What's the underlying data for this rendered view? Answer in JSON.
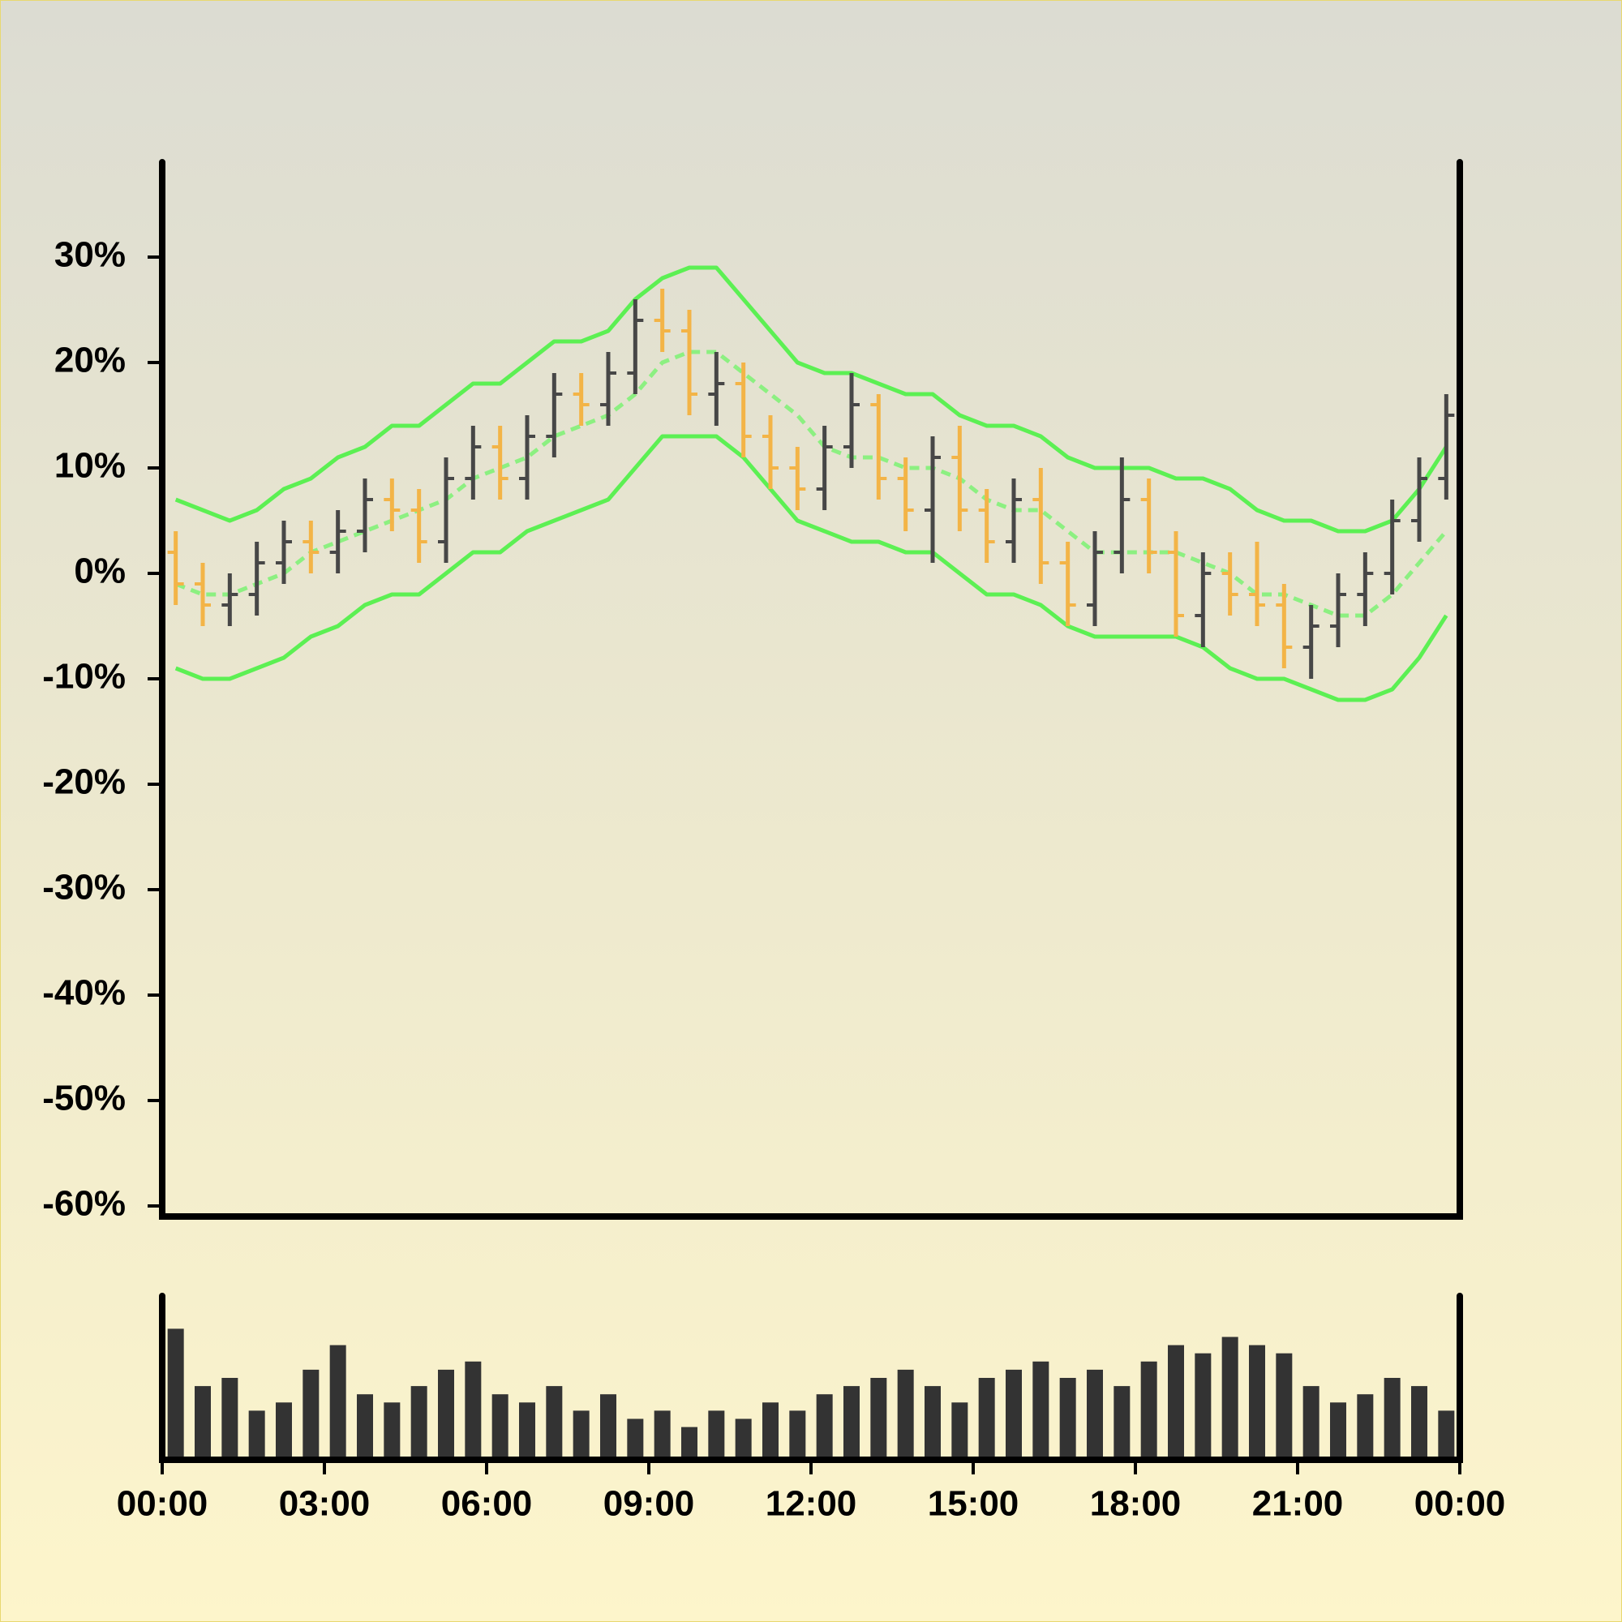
{
  "chart_data": {
    "type": "ohlc",
    "x": [
      0.25,
      0.75,
      1.25,
      1.75,
      2.25,
      2.75,
      3.25,
      3.75,
      4.25,
      4.75,
      5.25,
      5.75,
      6.25,
      6.75,
      7.25,
      7.75,
      8.25,
      8.75,
      9.25,
      9.75,
      10.25,
      10.75,
      11.25,
      11.75,
      12.25,
      12.75,
      13.25,
      13.75,
      14.25,
      14.75,
      15.25,
      15.75,
      16.25,
      16.75,
      17.25,
      17.75,
      18.25,
      18.75,
      19.25,
      19.75,
      20.25,
      20.75,
      21.25,
      21.75,
      22.25,
      22.75,
      23.25,
      23.75
    ],
    "open": [
      2,
      -1,
      -3,
      -2,
      1,
      3,
      2,
      4,
      7,
      6,
      3,
      9,
      12,
      9,
      13,
      17,
      16,
      19,
      24,
      23,
      17,
      18,
      13,
      10,
      8,
      12,
      16,
      9,
      6,
      11,
      6,
      3,
      7,
      1,
      -3,
      2,
      7,
      2,
      -4,
      0,
      -2,
      -3,
      -7,
      -5,
      -2,
      0,
      5,
      9
    ],
    "high": [
      4,
      1,
      0,
      3,
      5,
      5,
      6,
      9,
      9,
      8,
      11,
      14,
      14,
      15,
      19,
      19,
      21,
      26,
      27,
      25,
      21,
      20,
      15,
      12,
      14,
      19,
      17,
      11,
      13,
      14,
      8,
      9,
      10,
      3,
      4,
      11,
      9,
      4,
      2,
      2,
      3,
      -1,
      -3,
      0,
      2,
      7,
      11,
      17
    ],
    "low": [
      -3,
      -5,
      -5,
      -4,
      -1,
      0,
      0,
      2,
      4,
      1,
      1,
      7,
      7,
      7,
      11,
      14,
      14,
      17,
      21,
      15,
      14,
      11,
      8,
      6,
      6,
      10,
      7,
      4,
      1,
      4,
      1,
      1,
      -1,
      -5,
      -5,
      0,
      0,
      -6,
      -7,
      -4,
      -5,
      -9,
      -10,
      -7,
      -5,
      -2,
      3,
      7
    ],
    "close": [
      -1,
      -3,
      -2,
      1,
      3,
      2,
      4,
      7,
      6,
      3,
      9,
      12,
      9,
      13,
      17,
      16,
      19,
      24,
      23,
      17,
      18,
      13,
      10,
      8,
      12,
      16,
      9,
      6,
      11,
      6,
      3,
      7,
      1,
      -3,
      2,
      7,
      2,
      -4,
      0,
      -2,
      -3,
      -7,
      -5,
      -2,
      0,
      5,
      9,
      15
    ],
    "up_color": "#474747",
    "down_color": "#f3b447",
    "xlim": [
      0,
      24
    ],
    "xticks": [
      {
        "value": 0,
        "label": "00:00"
      },
      {
        "value": 3,
        "label": "03:00"
      },
      {
        "value": 6,
        "label": "06:00"
      },
      {
        "value": 9,
        "label": "09:00"
      },
      {
        "value": 12,
        "label": "12:00"
      },
      {
        "value": 15,
        "label": "15:00"
      },
      {
        "value": 18,
        "label": "18:00"
      },
      {
        "value": 21,
        "label": "21:00"
      },
      {
        "value": 24,
        "label": "00:00"
      }
    ],
    "ylim": [
      -61,
      39
    ],
    "yticks": [
      {
        "value": 30,
        "label": "30%"
      },
      {
        "value": 20,
        "label": "20%"
      },
      {
        "value": 10,
        "label": "10%"
      },
      {
        "value": 0,
        "label": "0%"
      },
      {
        "value": -10,
        "label": "-10%"
      },
      {
        "value": -20,
        "label": "-20%"
      },
      {
        "value": -30,
        "label": "-30%"
      },
      {
        "value": -40,
        "label": "-40%"
      },
      {
        "value": -50,
        "label": "-50%"
      },
      {
        "value": -60,
        "label": "-60%"
      }
    ],
    "bands": [
      {
        "color": "#5cf053",
        "dashed": false,
        "values": [
          7,
          6,
          5,
          6,
          8,
          9,
          11,
          12,
          14,
          14,
          16,
          18,
          18,
          20,
          22,
          22,
          23,
          26,
          28,
          29,
          29,
          26,
          23,
          20,
          19,
          19,
          18,
          17,
          17,
          15,
          14,
          14,
          13,
          11,
          10,
          10,
          10,
          9,
          9,
          8,
          6,
          5,
          5,
          4,
          4,
          5,
          8,
          12
        ]
      },
      {
        "color": "#8cf081",
        "dashed": true,
        "values": [
          -1,
          -2,
          -2,
          -1,
          0,
          2,
          3,
          4,
          5,
          6,
          7,
          9,
          10,
          11,
          13,
          14,
          15,
          17,
          20,
          21,
          21,
          19,
          17,
          15,
          12,
          11,
          11,
          10,
          10,
          9,
          7,
          6,
          6,
          4,
          2,
          2,
          2,
          2,
          1,
          0,
          -2,
          -2,
          -3,
          -4,
          -4,
          -2,
          1,
          4
        ]
      },
      {
        "color": "#5cf053",
        "dashed": false,
        "values": [
          -9,
          -10,
          -10,
          -9,
          -8,
          -6,
          -5,
          -3,
          -2,
          -2,
          0,
          2,
          2,
          4,
          5,
          6,
          7,
          10,
          13,
          13,
          13,
          11,
          8,
          5,
          4,
          3,
          3,
          2,
          2,
          0,
          -2,
          -2,
          -3,
          -5,
          -6,
          -6,
          -6,
          -6,
          -7,
          -9,
          -10,
          -10,
          -11,
          -12,
          -12,
          -11,
          -8,
          -4
        ]
      }
    ],
    "volume": {
      "color": "#333333",
      "ylim": [
        0,
        100
      ],
      "values": [
        80,
        45,
        50,
        30,
        35,
        55,
        70,
        40,
        35,
        45,
        55,
        60,
        40,
        35,
        45,
        30,
        40,
        25,
        30,
        20,
        30,
        25,
        35,
        30,
        40,
        45,
        50,
        55,
        45,
        35,
        50,
        55,
        60,
        50,
        55,
        45,
        60,
        70,
        65,
        75,
        70,
        65,
        45,
        35,
        40,
        50,
        45,
        30
      ]
    }
  }
}
